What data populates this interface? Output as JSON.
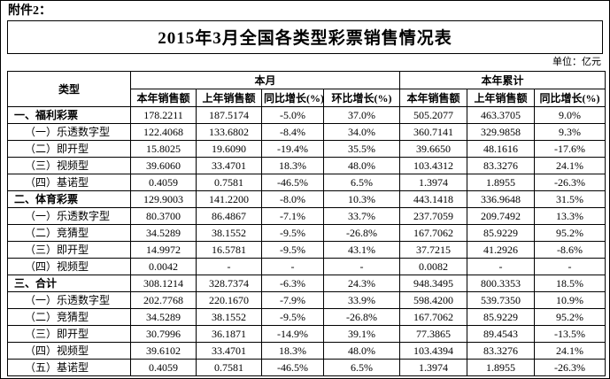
{
  "attachment_label": "附件2：",
  "title": "2015年3月全国各类型彩票销售情况表",
  "unit_label": "单位：亿元",
  "table": {
    "header": {
      "type_col": "类型",
      "month_group": "本月",
      "ytd_group": "本年累计",
      "month_cols": [
        "本年销售额",
        "上年销售额",
        "同比增长(%)",
        "环比增长(%)"
      ],
      "ytd_cols": [
        "本年销售额",
        "上年销售额",
        "同比增长(%)"
      ]
    },
    "rows": [
      {
        "type": "一、福利彩票",
        "level": "main",
        "cells": [
          "178.2211",
          "187.5174",
          "-5.0%",
          "37.0%",
          "505.2077",
          "463.3705",
          "9.0%"
        ]
      },
      {
        "type": "（一）乐透数字型",
        "level": "sub",
        "cells": [
          "122.4068",
          "133.6802",
          "-8.4%",
          "34.0%",
          "360.7141",
          "329.9858",
          "9.3%"
        ]
      },
      {
        "type": "（二）即开型",
        "level": "sub",
        "cells": [
          "15.8025",
          "19.6090",
          "-19.4%",
          "35.5%",
          "39.6650",
          "48.1616",
          "-17.6%"
        ]
      },
      {
        "type": "（三）视频型",
        "level": "sub",
        "cells": [
          "39.6060",
          "33.4701",
          "18.3%",
          "48.0%",
          "103.4312",
          "83.3276",
          "24.1%"
        ]
      },
      {
        "type": "（四）基诺型",
        "level": "sub",
        "cells": [
          "0.4059",
          "0.7581",
          "-46.5%",
          "6.5%",
          "1.3974",
          "1.8955",
          "-26.3%"
        ]
      },
      {
        "type": "二、体育彩票",
        "level": "main",
        "cells": [
          "129.9003",
          "141.2200",
          "-8.0%",
          "10.3%",
          "443.1418",
          "336.9648",
          "31.5%"
        ]
      },
      {
        "type": "（一）乐透数字型",
        "level": "sub",
        "cells": [
          "80.3700",
          "86.4867",
          "-7.1%",
          "33.7%",
          "237.7059",
          "209.7492",
          "13.3%"
        ]
      },
      {
        "type": "（二）竞猜型",
        "level": "sub",
        "cells": [
          "34.5289",
          "38.1552",
          "-9.5%",
          "-26.8%",
          "167.7062",
          "85.9229",
          "95.2%"
        ]
      },
      {
        "type": "（三）即开型",
        "level": "sub",
        "cells": [
          "14.9972",
          "16.5781",
          "-9.5%",
          "43.1%",
          "37.7215",
          "41.2926",
          "-8.6%"
        ]
      },
      {
        "type": "（四）视频型",
        "level": "sub",
        "cells": [
          "0.0042",
          "-",
          "-",
          "-",
          "0.0082",
          "-",
          "-"
        ]
      },
      {
        "type": "三、合计",
        "level": "main",
        "cells": [
          "308.1214",
          "328.7374",
          "-6.3%",
          "24.3%",
          "948.3495",
          "800.3353",
          "18.5%"
        ]
      },
      {
        "type": "（一）乐透数字型",
        "level": "sub",
        "cells": [
          "202.7768",
          "220.1670",
          "-7.9%",
          "33.9%",
          "598.4200",
          "539.7350",
          "10.9%"
        ]
      },
      {
        "type": "（二）竞猜型",
        "level": "sub",
        "cells": [
          "34.5289",
          "38.1552",
          "-9.5%",
          "-26.8%",
          "167.7062",
          "85.9229",
          "95.2%"
        ]
      },
      {
        "type": "（三）即开型",
        "level": "sub",
        "cells": [
          "30.7996",
          "36.1871",
          "-14.9%",
          "39.1%",
          "77.3865",
          "89.4543",
          "-13.5%"
        ]
      },
      {
        "type": "（四）视频型",
        "level": "sub",
        "cells": [
          "39.6102",
          "33.4701",
          "18.3%",
          "48.0%",
          "103.4394",
          "83.3276",
          "24.1%"
        ]
      },
      {
        "type": "（五）基诺型",
        "level": "sub",
        "cells": [
          "0.4059",
          "0.7581",
          "-46.5%",
          "6.5%",
          "1.3974",
          "1.8955",
          "-26.3%"
        ]
      }
    ]
  }
}
